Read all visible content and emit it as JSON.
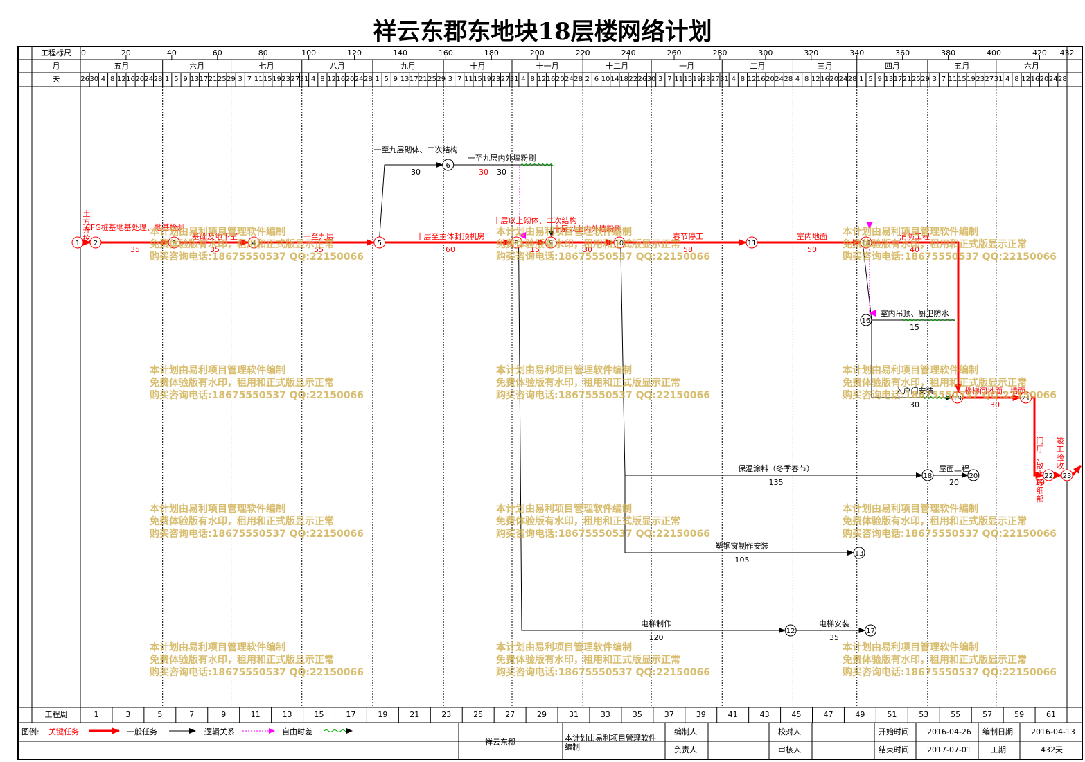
{
  "title": "祥云东郡东地块18层楼网络计划",
  "header": {
    "ruler_label": "工程标尺",
    "ruler_ticks": [
      "0",
      "20",
      "40",
      "60",
      "80",
      "100",
      "120",
      "140",
      "160",
      "180",
      "200",
      "220",
      "240",
      "260",
      "280",
      "300",
      "320",
      "340",
      "360",
      "380",
      "400",
      "420",
      "432"
    ],
    "month_label": "月",
    "months": [
      "五月",
      "六月",
      "七月",
      "八月",
      "九月",
      "十月",
      "十一月",
      "十二月",
      "一月",
      "二月",
      "三月",
      "四月",
      "五月",
      "六月"
    ],
    "day_label": "天",
    "days": [
      "26",
      "30",
      "4",
      "8",
      "12",
      "16",
      "20",
      "24",
      "28",
      "1",
      "5",
      "9",
      "13",
      "17",
      "21",
      "25",
      "29",
      "3",
      "7",
      "11",
      "15",
      "19",
      "23",
      "27",
      "31",
      "4",
      "8",
      "12",
      "16",
      "20",
      "24",
      "28",
      "1",
      "5",
      "9",
      "13",
      "17",
      "21",
      "25",
      "29",
      "3",
      "7",
      "11",
      "15",
      "19",
      "23",
      "27",
      "31",
      "4",
      "8",
      "12",
      "16",
      "20",
      "24",
      "28",
      "2",
      "6",
      "10",
      "14",
      "18",
      "22",
      "26",
      "30",
      "3",
      "7",
      "11",
      "15",
      "19",
      "23",
      "27",
      "31",
      "4",
      "8",
      "12",
      "16",
      "20",
      "24",
      "28",
      "4",
      "8",
      "12",
      "16",
      "20",
      "24",
      "28",
      "1",
      "5",
      "9",
      "13",
      "17",
      "21",
      "25",
      "29",
      "3",
      "7",
      "11",
      "15",
      "19",
      "23",
      "27",
      "31",
      "4",
      "8",
      "12",
      "16",
      "20",
      "24",
      "28"
    ]
  },
  "footer_row": {
    "label": "工程周",
    "weeks": [
      "1",
      "3",
      "5",
      "7",
      "9",
      "11",
      "13",
      "15",
      "17",
      "19",
      "21",
      "23",
      "25",
      "27",
      "29",
      "31",
      "33",
      "35",
      "37",
      "39",
      "41",
      "43",
      "45",
      "47",
      "49",
      "51",
      "53",
      "55",
      "57",
      "59",
      "61"
    ]
  },
  "legend": {
    "title": "图例:",
    "items": [
      {
        "label": "关键任务",
        "color": "#ff0000"
      },
      {
        "label": "一般任务",
        "color": "#000000"
      },
      {
        "label": "逻辑关系",
        "color": "#ff00ff"
      },
      {
        "label": "自由时差",
        "color": "#00aa00"
      }
    ]
  },
  "info": {
    "project": "祥云东郡",
    "software": "本计划由易利项目管理软件编制",
    "editor_label": "编制人",
    "checker_label": "校对人",
    "start_label": "开始时间",
    "start_value": "2016-04-26",
    "date_label": "编制日期",
    "date_value": "2016-04-13",
    "owner_label": "负责人",
    "auditor_label": "审核人",
    "end_label": "结束时间",
    "end_value": "2017-07-01",
    "duration_label": "工期",
    "duration_value": "432天"
  },
  "watermark": [
    "本计划由易利项目管理软件编制",
    "免费体验版有水印，租用和正式版显示正常",
    "购买咨询电话:18675550537 QQ:22150066"
  ],
  "network": {
    "nodes": [
      {
        "id": "1",
        "day": 0,
        "row": "main"
      },
      {
        "id": "2",
        "day": 6,
        "row": "main"
      },
      {
        "id": "3",
        "day": 41,
        "row": "main"
      },
      {
        "id": "4",
        "day": 76,
        "row": "main"
      },
      {
        "id": "5",
        "day": 131,
        "row": "main"
      },
      {
        "id": "6",
        "day": 161,
        "row": "top"
      },
      {
        "id": "8",
        "day": 191,
        "row": "main"
      },
      {
        "id": "9",
        "day": 206,
        "row": "main"
      },
      {
        "id": "10",
        "day": 236,
        "row": "main"
      },
      {
        "id": "11",
        "day": 294,
        "row": "main"
      },
      {
        "id": "14",
        "day": 344,
        "row": "main"
      },
      {
        "id": "16",
        "day": 344,
        "row": "r16"
      },
      {
        "id": "19",
        "day": 384,
        "row": "r19"
      },
      {
        "id": "21",
        "day": 414,
        "row": "r19"
      },
      {
        "id": "22",
        "day": 424,
        "row": "r22"
      },
      {
        "id": "23",
        "day": 432,
        "row": "r22"
      },
      {
        "id": "18",
        "day": 371,
        "row": "r18"
      },
      {
        "id": "20",
        "day": 391,
        "row": "r18"
      },
      {
        "id": "13",
        "day": 341,
        "row": "r13"
      },
      {
        "id": "12",
        "day": 311,
        "row": "r12"
      },
      {
        "id": "17",
        "day": 346,
        "row": "r12"
      }
    ],
    "tasks": [
      {
        "name": "土方开挖",
        "duration": "6",
        "critical": true
      },
      {
        "name": "CFG桩基地基处理、地基检测",
        "duration": "35",
        "critical": true
      },
      {
        "name": "基础及地下室",
        "duration": "35",
        "critical": true
      },
      {
        "name": "一至九层",
        "duration": "55",
        "critical": true
      },
      {
        "name": "十层至主体封顶机房",
        "duration": "60",
        "critical": true
      },
      {
        "name": "十层以上砌体、二次结构",
        "duration": "15",
        "critical": true
      },
      {
        "name": "十层以上内外墙粉刷",
        "duration": "30",
        "critical": true
      },
      {
        "name": "春节停工",
        "duration": "58",
        "critical": true
      },
      {
        "name": "室内地面",
        "duration": "50",
        "critical": true
      },
      {
        "name": "消防工程",
        "duration": "40",
        "critical": true
      },
      {
        "name": "楼梯间地面、墙面",
        "duration": "30",
        "critical": true
      },
      {
        "name": "门厅、散水等细部",
        "duration": "10",
        "critical": true
      },
      {
        "name": "竣工验收",
        "duration": "",
        "critical": true
      },
      {
        "name": "一至九层砌体、二次结构",
        "duration": "30",
        "critical": false
      },
      {
        "name": "一至九层内外墙粉刷",
        "duration": "30",
        "critical": false
      },
      {
        "name": "室内吊顶、厨卫防水",
        "duration": "15",
        "critical": false
      },
      {
        "name": "入户门安装",
        "duration": "30",
        "critical": false
      },
      {
        "name": "保温涂料（冬季春节）",
        "duration": "135",
        "critical": false
      },
      {
        "name": "屋面工程",
        "duration": "20",
        "critical": false
      },
      {
        "name": "塑钢窗制作安装",
        "duration": "105",
        "critical": false
      },
      {
        "name": "电梯制作",
        "duration": "120",
        "critical": false
      },
      {
        "name": "电梯安装",
        "duration": "35",
        "critical": false
      }
    ]
  }
}
